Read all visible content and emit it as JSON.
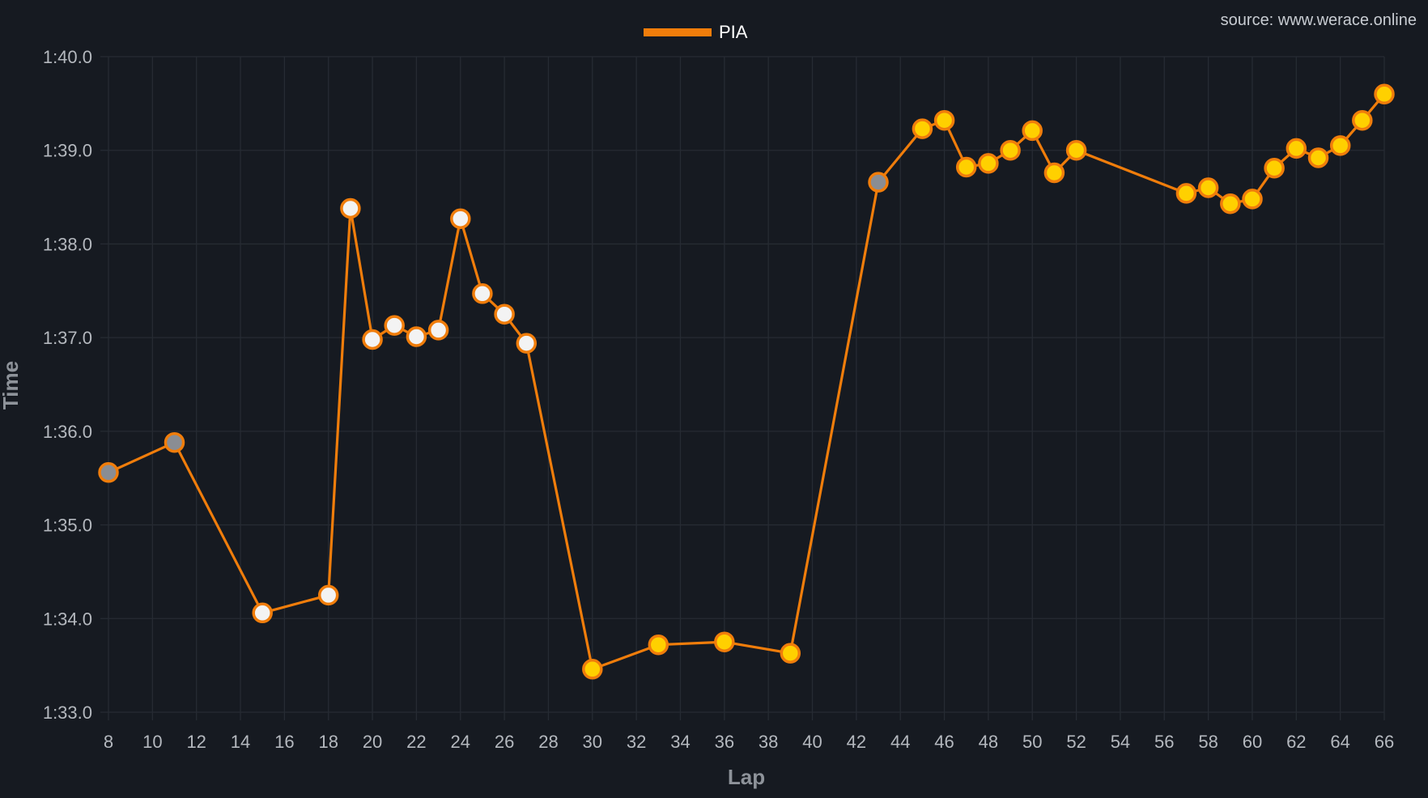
{
  "source": "source: www.werace.online",
  "colors": {
    "background": "#161a21",
    "series": "#f07d0b",
    "marker_white": "#f3f3f3",
    "marker_yellow": "#ffd000",
    "marker_grey": "#8a8d93"
  },
  "chart_data": {
    "type": "line",
    "title": "",
    "xlabel": "Lap",
    "ylabel": "Time",
    "xlim": [
      8,
      66
    ],
    "ylim": [
      93.0,
      100.0
    ],
    "x_ticks": [
      8,
      10,
      12,
      14,
      16,
      18,
      20,
      22,
      24,
      26,
      28,
      30,
      32,
      34,
      36,
      38,
      40,
      42,
      44,
      46,
      48,
      50,
      52,
      54,
      56,
      58,
      60,
      62,
      64,
      66
    ],
    "y_ticks": [
      {
        "value": 93,
        "label": "1:33.0"
      },
      {
        "value": 94,
        "label": "1:34.0"
      },
      {
        "value": 95,
        "label": "1:35.0"
      },
      {
        "value": 96,
        "label": "1:36.0"
      },
      {
        "value": 97,
        "label": "1:37.0"
      },
      {
        "value": 98,
        "label": "1:38.0"
      },
      {
        "value": 99,
        "label": "1:39.0"
      },
      {
        "value": 100,
        "label": "1:40.0"
      }
    ],
    "legend": {
      "position": "top-center",
      "entries": [
        "PIA"
      ]
    },
    "series": [
      {
        "name": "PIA",
        "color": "#f07d0b",
        "points": [
          {
            "lap": 8,
            "time": 95.56,
            "compound": "grey"
          },
          {
            "lap": 11,
            "time": 95.88,
            "compound": "grey"
          },
          {
            "lap": 15,
            "time": 94.06,
            "compound": "white"
          },
          {
            "lap": 18,
            "time": 94.25,
            "compound": "white"
          },
          {
            "lap": 19,
            "time": 98.38,
            "compound": "white"
          },
          {
            "lap": 20,
            "time": 96.98,
            "compound": "white"
          },
          {
            "lap": 21,
            "time": 97.13,
            "compound": "white"
          },
          {
            "lap": 22,
            "time": 97.01,
            "compound": "white"
          },
          {
            "lap": 23,
            "time": 97.08,
            "compound": "white"
          },
          {
            "lap": 24,
            "time": 98.27,
            "compound": "white"
          },
          {
            "lap": 25,
            "time": 97.47,
            "compound": "white"
          },
          {
            "lap": 26,
            "time": 97.25,
            "compound": "white"
          },
          {
            "lap": 27,
            "time": 96.94,
            "compound": "white"
          },
          {
            "lap": 30,
            "time": 93.46,
            "compound": "yellow"
          },
          {
            "lap": 33,
            "time": 93.72,
            "compound": "yellow"
          },
          {
            "lap": 36,
            "time": 93.75,
            "compound": "yellow"
          },
          {
            "lap": 39,
            "time": 93.63,
            "compound": "yellow"
          },
          {
            "lap": 43,
            "time": 98.66,
            "compound": "grey"
          },
          {
            "lap": 45,
            "time": 99.23,
            "compound": "yellow"
          },
          {
            "lap": 46,
            "time": 99.32,
            "compound": "yellow"
          },
          {
            "lap": 47,
            "time": 98.82,
            "compound": "yellow"
          },
          {
            "lap": 48,
            "time": 98.86,
            "compound": "yellow"
          },
          {
            "lap": 49,
            "time": 99.0,
            "compound": "yellow"
          },
          {
            "lap": 50,
            "time": 99.21,
            "compound": "yellow"
          },
          {
            "lap": 51,
            "time": 98.76,
            "compound": "yellow"
          },
          {
            "lap": 52,
            "time": 99.0,
            "compound": "yellow"
          },
          {
            "lap": 57,
            "time": 98.54,
            "compound": "yellow"
          },
          {
            "lap": 58,
            "time": 98.6,
            "compound": "yellow"
          },
          {
            "lap": 59,
            "time": 98.43,
            "compound": "yellow"
          },
          {
            "lap": 60,
            "time": 98.48,
            "compound": "yellow"
          },
          {
            "lap": 61,
            "time": 98.81,
            "compound": "yellow"
          },
          {
            "lap": 62,
            "time": 99.02,
            "compound": "yellow"
          },
          {
            "lap": 63,
            "time": 98.92,
            "compound": "yellow"
          },
          {
            "lap": 64,
            "time": 99.05,
            "compound": "yellow"
          },
          {
            "lap": 65,
            "time": 99.32,
            "compound": "yellow"
          },
          {
            "lap": 66,
            "time": 99.6,
            "compound": "yellow"
          }
        ]
      }
    ]
  }
}
